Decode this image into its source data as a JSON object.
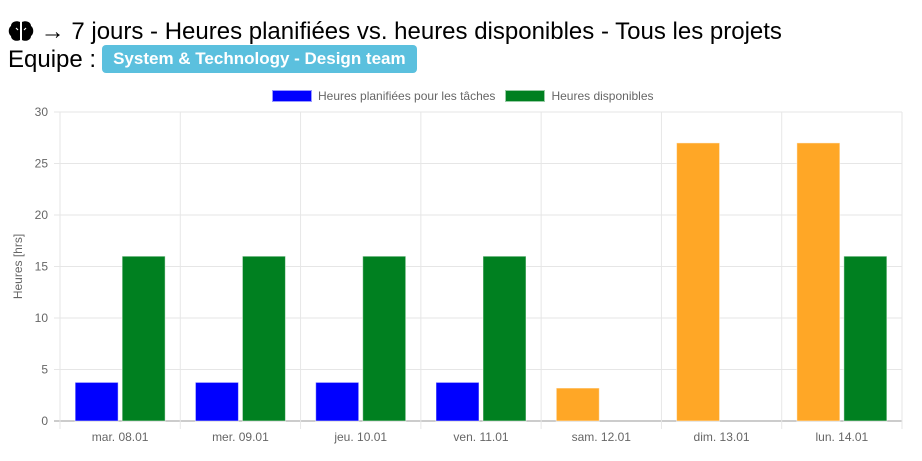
{
  "header": {
    "icon": "brain-icon",
    "arrow": "→",
    "title": "7 jours - Heures planifiées vs. heures disponibles - Tous les projets",
    "team_label": "Equipe :",
    "team_badge": "System & Technology - Design team",
    "badge_color": "#5bc0de"
  },
  "legend": [
    {
      "label": "Heures planifiées pour les tâches",
      "color": "#0000ff"
    },
    {
      "label": "Heures disponibles",
      "color": "#008020"
    }
  ],
  "chart_data": {
    "type": "bar",
    "title": "7 jours - Heures planifiées vs. heures disponibles - Tous les projets",
    "xlabel": "",
    "ylabel": "Heures [hrs]",
    "ylim": [
      0,
      30
    ],
    "yticks": [
      0,
      5,
      10,
      15,
      20,
      25,
      30
    ],
    "grid": true,
    "legend_position": "top",
    "categories": [
      "mar. 08.01",
      "mer. 09.01",
      "jeu. 10.01",
      "ven. 11.01",
      "sam. 12.01",
      "dim. 13.01",
      "lun. 14.01"
    ],
    "series": [
      {
        "name": "Heures planifiées pour les tâches",
        "values": [
          3.75,
          3.75,
          3.75,
          3.75,
          3.2,
          27,
          27
        ],
        "colors": [
          "#0000ff",
          "#0000ff",
          "#0000ff",
          "#0000ff",
          "#ffa726",
          "#ffa726",
          "#ffa726"
        ]
      },
      {
        "name": "Heures disponibles",
        "values": [
          16,
          16,
          16,
          16,
          0,
          0,
          16
        ],
        "colors": [
          "#008020",
          "#008020",
          "#008020",
          "#008020",
          "#008020",
          "#008020",
          "#008020"
        ]
      }
    ],
    "over_capacity_color": "#ffa726"
  }
}
